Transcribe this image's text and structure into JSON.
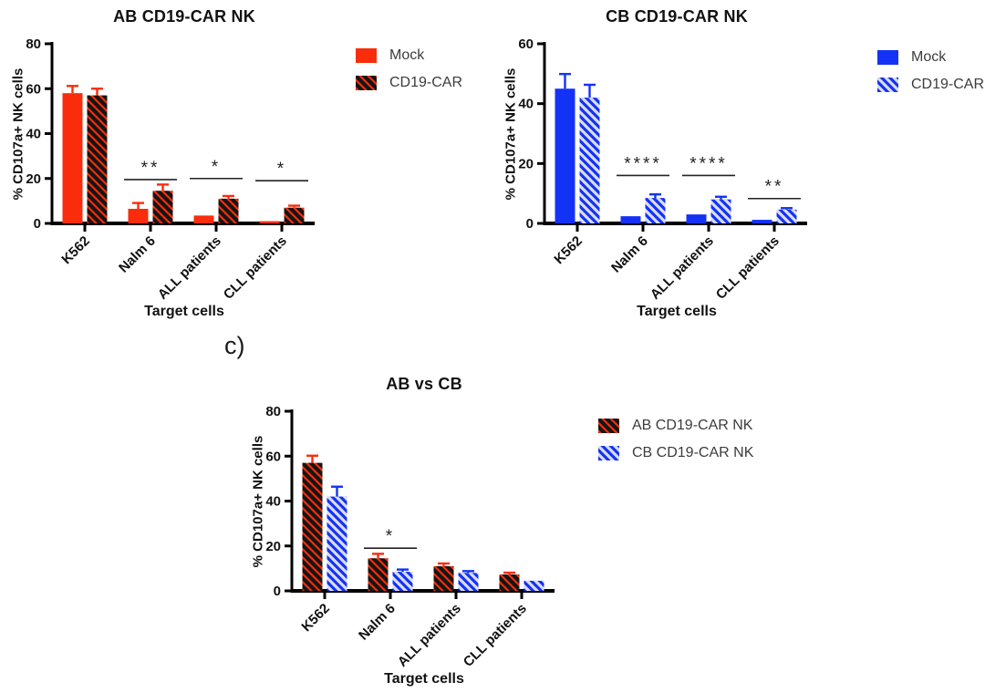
{
  "page": {
    "background": "#ffffff",
    "panel_label": "c)"
  },
  "colors": {
    "red": "#F92D0B",
    "blue": "#1432F5",
    "red_hatch_stripe": "#151515",
    "blue_hatch_stripe": "#D9DDEC",
    "axis": "#000000",
    "text": "#111111",
    "legend_text": "#3C3C3C",
    "significance": "#222222"
  },
  "chart_data": [
    {
      "id": "ab",
      "type": "bar",
      "title": "AB CD19-CAR NK",
      "xlabel": "Target cells",
      "ylabel": "% CD107a+ NK cells",
      "ylim": [
        0,
        80
      ],
      "yticks": [
        0,
        20,
        40,
        60,
        80
      ],
      "grid": false,
      "legend_position": "right",
      "error_bars": "upper, SEM",
      "categories": [
        "K562",
        "Nalm 6",
        "ALL patients",
        "CLL patients"
      ],
      "series": [
        {
          "name": "Mock",
          "color": "red",
          "hatch": false,
          "values": [
            58,
            6.5,
            3.5,
            1
          ],
          "errors": [
            3.2,
            2.6,
            0.6,
            0.2
          ]
        },
        {
          "name": "CD19-CAR",
          "color": "red",
          "hatch": true,
          "values": [
            57,
            14.5,
            11,
            7
          ],
          "errors": [
            3,
            2.8,
            1.2,
            0.9
          ]
        }
      ],
      "significance": [
        {
          "category": 1,
          "label": "**",
          "line_y": 19.5
        },
        {
          "category": 2,
          "label": "*",
          "line_y": 20
        },
        {
          "category": 3,
          "label": "*",
          "line_y": 19
        }
      ]
    },
    {
      "id": "cb",
      "type": "bar",
      "title": "CB CD19-CAR NK",
      "xlabel": "Target cells",
      "ylabel": "% CD107a+ NK cells",
      "ylim": [
        0,
        60
      ],
      "yticks": [
        0,
        20,
        40,
        60
      ],
      "grid": false,
      "legend_position": "right",
      "error_bars": "upper, SEM",
      "categories": [
        "K562",
        "Nalm 6",
        "ALL patients",
        "CLL patients"
      ],
      "series": [
        {
          "name": "Mock",
          "color": "blue",
          "hatch": false,
          "values": [
            45,
            2.4,
            3,
            1.2
          ],
          "errors": [
            4.9,
            0.4,
            0.4,
            0.2
          ]
        },
        {
          "name": "CD19-CAR",
          "color": "blue",
          "hatch": true,
          "values": [
            42,
            8.5,
            8,
            4.6
          ],
          "errors": [
            4.3,
            1.2,
            0.9,
            0.5
          ]
        }
      ],
      "significance": [
        {
          "category": 1,
          "label": "****",
          "line_y": 16
        },
        {
          "category": 2,
          "label": "****",
          "line_y": 16
        },
        {
          "category": 3,
          "label": "**",
          "line_y": 8.3
        }
      ]
    },
    {
      "id": "abcb",
      "type": "bar",
      "title": "AB vs CB",
      "xlabel": "Target cells",
      "ylabel": "% CD107a+ NK cells",
      "ylim": [
        0,
        80
      ],
      "yticks": [
        0,
        20,
        40,
        60,
        80
      ],
      "grid": false,
      "legend_position": "right",
      "error_bars": "upper, SEM",
      "categories": [
        "K562",
        "Nalm 6",
        "ALL patients",
        "CLL patients"
      ],
      "series": [
        {
          "name": "AB CD19-CAR NK",
          "color": "red",
          "hatch": true,
          "values": [
            57,
            14.5,
            11,
            7.3
          ],
          "errors": [
            3.2,
            2,
            1.2,
            0.8
          ]
        },
        {
          "name": "CB CD19-CAR NK",
          "color": "blue",
          "hatch": true,
          "values": [
            42,
            8.5,
            8,
            4.5
          ],
          "errors": [
            4.4,
            1,
            0.8,
            0.5
          ]
        }
      ],
      "significance": [
        {
          "category": 1,
          "label": "*",
          "line_y": 19
        }
      ]
    }
  ]
}
